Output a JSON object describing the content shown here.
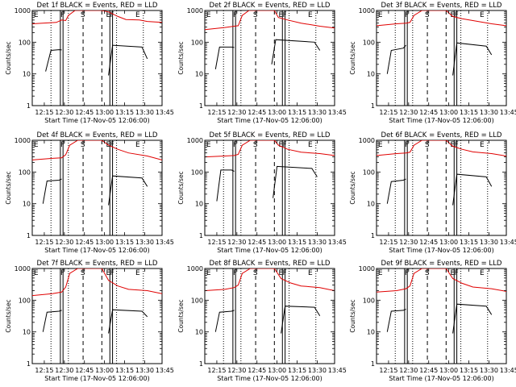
{
  "chart_data": {
    "type": "line",
    "yscale": "log",
    "ylim": [
      1,
      1000
    ],
    "xlim_minutes": [
      0,
      97
    ],
    "xaxis_ticks": [
      {
        "label": "12:15",
        "t": 9
      },
      {
        "label": "12:30",
        "t": 24
      },
      {
        "label": "12:45",
        "t": 39
      },
      {
        "label": "13:00",
        "t": 54
      },
      {
        "label": "13:15",
        "t": 69
      },
      {
        "label": "13:30",
        "t": 84
      },
      {
        "label": "13:45",
        "t": 99
      }
    ],
    "yaxis_ticks": [
      {
        "label": "1",
        "value": 1
      },
      {
        "label": "10",
        "value": 10
      },
      {
        "label": "100",
        "value": 100
      },
      {
        "label": "1000",
        "value": 1000
      }
    ],
    "xlabel": "Start Time (17-Nov-05 12:06:00)",
    "ylabel": "Counts/sec",
    "series_legend": {
      "events": "BLACK = Events",
      "lld": "RED = LLD"
    },
    "markers": [
      {
        "label": "E",
        "t": 0.5
      },
      {
        "label": "F",
        "t": 20.5
      },
      {
        "label": "S",
        "t": 35.5
      },
      {
        "label": "E",
        "t": 54.5
      },
      {
        "label": "F",
        "t": 57.5
      },
      {
        "label": "E",
        "t": 76.5
      }
    ],
    "solid_pairs": [
      [
        21,
        23
      ],
      [
        58,
        60
      ]
    ],
    "dashed_lines": [
      38,
      52
    ],
    "dotted_lines": [
      14,
      27,
      63,
      83
    ],
    "panels": [
      {
        "title": "Det 1f BLACK = Events, RED = LLD",
        "events": {
          "segments": [
            {
              "t": [
                10,
                14,
                20,
                22
              ],
              "v": [
                12,
                55,
                58,
                57
              ]
            },
            {
              "t": [
                57,
                60,
                82,
                86
              ],
              "v": [
                9,
                80,
                70,
                30
              ]
            }
          ]
        },
        "lld": {
          "t": [
            0,
            18,
            22,
            25,
            27,
            32,
            52,
            57,
            64,
            70,
            80,
            86,
            97
          ],
          "v": [
            380,
            420,
            500,
            480,
            700,
            1000,
            1000,
            900,
            650,
            520,
            500,
            450,
            420
          ]
        }
      },
      {
        "title": "Det 2f BLACK = Events, RED = LLD",
        "events": {
          "segments": [
            {
              "t": [
                8,
                11,
                20,
                22
              ],
              "v": [
                14,
                70,
                70,
                68
              ]
            },
            {
              "t": [
                50,
                53,
                82,
                86
              ],
              "v": [
                20,
                120,
                100,
                55
              ]
            }
          ]
        },
        "lld": {
          "t": [
            0,
            15,
            22,
            25,
            28,
            33,
            52,
            55,
            62,
            72,
            86,
            97
          ],
          "v": [
            250,
            290,
            320,
            330,
            700,
            1000,
            1000,
            600,
            500,
            400,
            320,
            280
          ]
        }
      },
      {
        "title": "Det 3f BLACK = Events, RED = LLD",
        "events": {
          "segments": [
            {
              "t": [
                8,
                11,
                20,
                22
              ],
              "v": [
                10,
                55,
                65,
                80
              ]
            },
            {
              "t": [
                57,
                60,
                82,
                86
              ],
              "v": [
                9,
                95,
                75,
                40
              ]
            }
          ]
        },
        "lld": {
          "t": [
            0,
            15,
            22,
            25,
            28,
            34,
            52,
            57,
            64,
            72,
            86,
            97
          ],
          "v": [
            330,
            380,
            400,
            420,
            700,
            1000,
            1000,
            650,
            550,
            480,
            380,
            330
          ]
        }
      },
      {
        "title": "Det 4f BLACK = Events, RED = LLD",
        "events": {
          "segments": [
            {
              "t": [
                8,
                11,
                20,
                22
              ],
              "v": [
                10,
                52,
                55,
                60
              ]
            },
            {
              "t": [
                57,
                60,
                82,
                86
              ],
              "v": [
                9,
                75,
                65,
                35
              ]
            }
          ]
        },
        "lld": {
          "t": [
            0,
            15,
            22,
            25,
            28,
            34,
            52,
            57,
            64,
            72,
            86,
            97
          ],
          "v": [
            240,
            270,
            280,
            350,
            700,
            1000,
            1000,
            700,
            520,
            400,
            320,
            240
          ]
        }
      },
      {
        "title": "Det 5f BLACK = Events, RED = LLD",
        "events": {
          "segments": [
            {
              "t": [
                9,
                12,
                20,
                22
              ],
              "v": [
                12,
                115,
                115,
                105
              ]
            },
            {
              "t": [
                51,
                54,
                80,
                84
              ],
              "v": [
                15,
                150,
                130,
                70
              ]
            }
          ]
        },
        "lld": {
          "t": [
            0,
            15,
            22,
            25,
            28,
            34,
            52,
            55,
            62,
            72,
            86,
            97
          ],
          "v": [
            300,
            320,
            330,
            360,
            700,
            1000,
            1000,
            700,
            520,
            420,
            380,
            330
          ]
        }
      },
      {
        "title": "Det 6f BLACK = Events, RED = LLD",
        "events": {
          "segments": [
            {
              "t": [
                8,
                11,
                20,
                22
              ],
              "v": [
                10,
                50,
                55,
                60
              ]
            },
            {
              "t": [
                57,
                60,
                82,
                86
              ],
              "v": [
                9,
                85,
                70,
                35
              ]
            }
          ]
        },
        "lld": {
          "t": [
            0,
            15,
            22,
            25,
            28,
            34,
            52,
            57,
            64,
            72,
            86,
            97
          ],
          "v": [
            330,
            380,
            400,
            420,
            700,
            1000,
            1000,
            650,
            520,
            430,
            380,
            320
          ]
        }
      },
      {
        "title": "Det 7f BLACK = Events, RED = LLD",
        "events": {
          "segments": [
            {
              "t": [
                8,
                11,
                20,
                22
              ],
              "v": [
                10,
                42,
                45,
                48
              ]
            },
            {
              "t": [
                57,
                60,
                82,
                86
              ],
              "v": [
                9,
                50,
                45,
                30
              ]
            }
          ]
        },
        "lld": {
          "t": [
            0,
            15,
            22,
            25,
            28,
            34,
            52,
            57,
            64,
            72,
            86,
            97
          ],
          "v": [
            140,
            160,
            180,
            260,
            700,
            1000,
            1000,
            420,
            280,
            220,
            200,
            160
          ]
        }
      },
      {
        "title": "Det 8f BLACK = Events, RED = LLD",
        "events": {
          "segments": [
            {
              "t": [
                8,
                11,
                20,
                22
              ],
              "v": [
                10,
                42,
                45,
                48
              ]
            },
            {
              "t": [
                57,
                60,
                82,
                86
              ],
              "v": [
                9,
                65,
                60,
                32
              ]
            }
          ]
        },
        "lld": {
          "t": [
            0,
            15,
            22,
            25,
            28,
            34,
            52,
            57,
            64,
            72,
            86,
            97
          ],
          "v": [
            200,
            220,
            250,
            300,
            700,
            1000,
            1000,
            480,
            350,
            280,
            250,
            200
          ]
        }
      },
      {
        "title": "Det 9f BLACK = Events, RED = LLD",
        "events": {
          "segments": [
            {
              "t": [
                8,
                11,
                20,
                22
              ],
              "v": [
                10,
                45,
                48,
                52
              ]
            },
            {
              "t": [
                57,
                60,
                82,
                86
              ],
              "v": [
                9,
                75,
                65,
                35
              ]
            }
          ]
        },
        "lld": {
          "t": [
            0,
            15,
            22,
            25,
            28,
            34,
            52,
            57,
            64,
            72,
            86,
            97
          ],
          "v": [
            180,
            200,
            230,
            280,
            700,
            1000,
            1000,
            480,
            340,
            260,
            230,
            190
          ]
        }
      }
    ]
  }
}
